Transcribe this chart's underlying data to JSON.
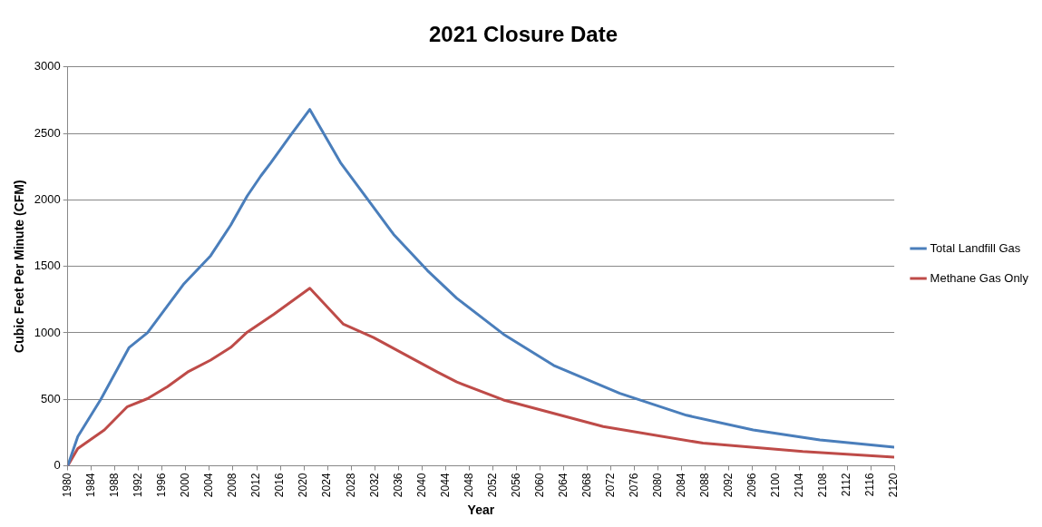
{
  "chart_data": {
    "type": "line",
    "title": "2021 Closure Date",
    "xlabel": "Year",
    "ylabel": "Cubic Feet Per Minute (CFM)",
    "xlim": [
      1980,
      2120
    ],
    "xticks": [
      1980,
      1984,
      1988,
      1992,
      1996,
      2000,
      2004,
      2008,
      2012,
      2016,
      2020,
      2024,
      2028,
      2032,
      2036,
      2040,
      2044,
      2048,
      2052,
      2056,
      2060,
      2064,
      2068,
      2072,
      2076,
      2080,
      2084,
      2088,
      2092,
      2096,
      2100,
      2104,
      2108,
      2112,
      2116,
      2120
    ],
    "ylim": [
      0,
      3000
    ],
    "yticks": [
      0,
      500,
      1000,
      1500,
      2000,
      2500,
      3000
    ],
    "grid": "y",
    "legend": "right",
    "marker": "none",
    "line_style": "solid",
    "series": [
      {
        "name": "Total Landfill Gas",
        "color": "#4a7ebb",
        "x": [
          1980,
          1981.7,
          1985.6,
          1990.4,
          1993.5,
          1999.7,
          2004.2,
          2007.6,
          2010.4,
          2012.7,
          2014.4,
          2017.8,
          2021,
          2026.2,
          2030.7,
          2035.2,
          2040.9,
          2045.9,
          2053.8,
          2062.3,
          2073.5,
          2084.8,
          2096.1,
          2107.4,
          2120
        ],
        "values": [
          0,
          220,
          500,
          890,
          1000,
          1370,
          1580,
          1810,
          2030,
          2180,
          2280,
          2490,
          2680,
          2280,
          2010,
          1740,
          1470,
          1260,
          990,
          755,
          545,
          380,
          270,
          195,
          140
        ]
      },
      {
        "name": "Methane Gas Only",
        "color": "#be4b48",
        "x": [
          1980,
          1981.7,
          1986.2,
          1990.1,
          1993.5,
          1996.9,
          2000.3,
          2004.2,
          2007.6,
          2010.4,
          2014.9,
          2021,
          2026.7,
          2031.8,
          2037.4,
          2042.6,
          2045.9,
          2053.8,
          2070.7,
          2087.6,
          2104.5,
          2120
        ],
        "values": [
          0,
          130,
          270,
          445,
          505,
          595,
          705,
          795,
          890,
          1005,
          1140,
          1335,
          1065,
          965,
          830,
          705,
          630,
          495,
          295,
          170,
          107,
          65
        ]
      }
    ]
  }
}
